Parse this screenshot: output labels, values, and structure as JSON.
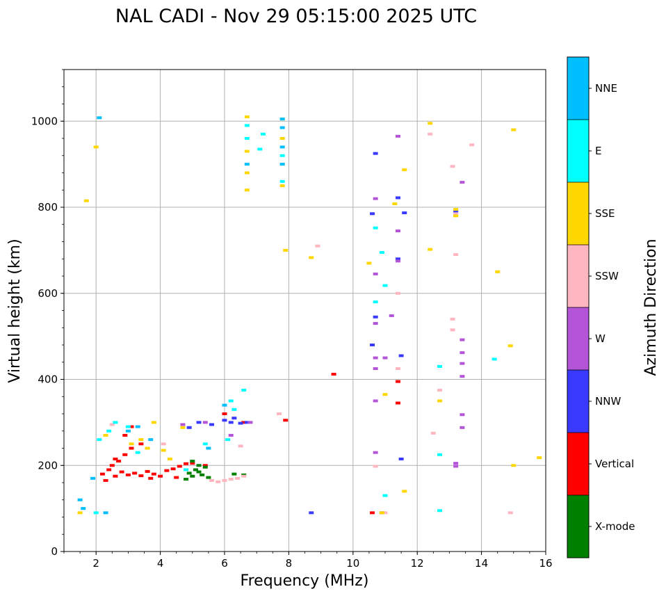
{
  "chart_data": {
    "type": "scatter",
    "title": "NAL CADI - Nov 29 05:15:00 2025 UTC",
    "xlabel": "Frequency (MHz)",
    "ylabel": "Virtual height (km)",
    "xlim": [
      1,
      16
    ],
    "ylim": [
      0,
      1120
    ],
    "xticks": [
      "2",
      "4",
      "6",
      "8",
      "10",
      "12",
      "14",
      "16"
    ],
    "yticks": [
      "0",
      "200",
      "400",
      "600",
      "800",
      "1000"
    ],
    "grid": true,
    "colorbar": {
      "label": "Azimuth Direction",
      "categories": [
        {
          "name": "X-mode",
          "color": "#008000"
        },
        {
          "name": "Vertical",
          "color": "#ff0000"
        },
        {
          "name": "NNW",
          "color": "#3a3aff"
        },
        {
          "name": "W",
          "color": "#b455d8"
        },
        {
          "name": "SSW",
          "color": "#ffb6c1"
        },
        {
          "name": "SSE",
          "color": "#ffd700"
        },
        {
          "name": "E",
          "color": "#00ffff"
        },
        {
          "name": "NNE",
          "color": "#00bfff"
        }
      ]
    },
    "series": [
      {
        "name": "Vertical",
        "points": [
          [
            2.2,
            180
          ],
          [
            2.4,
            190
          ],
          [
            2.6,
            175
          ],
          [
            2.8,
            185
          ],
          [
            3.0,
            178
          ],
          [
            3.2,
            182
          ],
          [
            3.4,
            176
          ],
          [
            3.6,
            186
          ],
          [
            3.8,
            180
          ],
          [
            4.0,
            175
          ],
          [
            4.2,
            188
          ],
          [
            4.4,
            192
          ],
          [
            4.6,
            198
          ],
          [
            4.8,
            204
          ],
          [
            2.5,
            200
          ],
          [
            2.7,
            210
          ],
          [
            2.9,
            225
          ],
          [
            3.1,
            240
          ],
          [
            2.9,
            270
          ],
          [
            3.1,
            290
          ],
          [
            2.6,
            215
          ],
          [
            3.4,
            250
          ],
          [
            5.0,
            205
          ],
          [
            5.4,
            200
          ],
          [
            6.0,
            320
          ],
          [
            6.6,
            300
          ],
          [
            7.9,
            305
          ],
          [
            11.4,
            395
          ],
          [
            11.4,
            345
          ],
          [
            9.4,
            412
          ],
          [
            10.6,
            90
          ],
          [
            4.5,
            172
          ],
          [
            2.3,
            165
          ],
          [
            3.7,
            170
          ]
        ]
      },
      {
        "name": "X-mode",
        "points": [
          [
            4.9,
            182
          ],
          [
            5.0,
            175
          ],
          [
            5.1,
            190
          ],
          [
            5.2,
            185
          ],
          [
            5.3,
            178
          ],
          [
            5.4,
            196
          ],
          [
            5.5,
            172
          ],
          [
            5.2,
            200
          ],
          [
            5.0,
            210
          ],
          [
            4.8,
            168
          ],
          [
            6.3,
            180
          ],
          [
            6.6,
            178
          ]
        ]
      },
      {
        "name": "NNW",
        "points": [
          [
            5.2,
            300
          ],
          [
            5.6,
            295
          ],
          [
            6.0,
            305
          ],
          [
            6.2,
            300
          ],
          [
            6.5,
            298
          ],
          [
            6.7,
            300
          ],
          [
            4.9,
            288
          ],
          [
            8.7,
            90
          ],
          [
            10.6,
            480
          ],
          [
            10.6,
            785
          ],
          [
            10.7,
            925
          ],
          [
            10.7,
            545
          ],
          [
            11.5,
            455
          ],
          [
            11.5,
            215
          ],
          [
            11.4,
            680
          ],
          [
            11.4,
            822
          ],
          [
            11.6,
            787
          ],
          [
            13.2,
            790
          ],
          [
            6.3,
            310
          ],
          [
            10.9,
            90
          ]
        ]
      },
      {
        "name": "W",
        "points": [
          [
            5.4,
            300
          ],
          [
            6.8,
            300
          ],
          [
            10.7,
            820
          ],
          [
            10.7,
            645
          ],
          [
            10.7,
            450
          ],
          [
            10.7,
            425
          ],
          [
            11.0,
            450
          ],
          [
            11.2,
            548
          ],
          [
            11.4,
            965
          ],
          [
            11.4,
            745
          ],
          [
            11.4,
            675
          ],
          [
            13.2,
            205
          ],
          [
            13.2,
            198
          ],
          [
            13.4,
            858
          ],
          [
            13.4,
            492
          ],
          [
            13.4,
            462
          ],
          [
            13.4,
            437
          ],
          [
            13.4,
            407
          ],
          [
            13.4,
            318
          ],
          [
            13.4,
            288
          ],
          [
            10.7,
            230
          ],
          [
            10.7,
            350
          ],
          [
            10.7,
            530
          ],
          [
            4.7,
            295
          ],
          [
            6.2,
            270
          ]
        ]
      },
      {
        "name": "SSW",
        "points": [
          [
            5.6,
            165
          ],
          [
            5.8,
            162
          ],
          [
            6.0,
            165
          ],
          [
            6.2,
            168
          ],
          [
            6.4,
            170
          ],
          [
            6.6,
            175
          ],
          [
            6.5,
            245
          ],
          [
            7.7,
            320
          ],
          [
            8.9,
            710
          ],
          [
            11.4,
            425
          ],
          [
            11.4,
            600
          ],
          [
            11.0,
            90
          ],
          [
            12.5,
            275
          ],
          [
            12.4,
            970
          ],
          [
            12.7,
            375
          ],
          [
            13.1,
            895
          ],
          [
            13.1,
            540
          ],
          [
            13.1,
            515
          ],
          [
            13.2,
            690
          ],
          [
            13.7,
            945
          ],
          [
            14.9,
            90
          ],
          [
            10.7,
            198
          ],
          [
            13.2,
            785
          ],
          [
            4.1,
            250
          ],
          [
            2.5,
            295
          ]
        ]
      },
      {
        "name": "SSE",
        "points": [
          [
            3.1,
            250
          ],
          [
            3.4,
            260
          ],
          [
            3.6,
            240
          ],
          [
            3.8,
            300
          ],
          [
            4.1,
            235
          ],
          [
            4.3,
            215
          ],
          [
            4.7,
            288
          ],
          [
            2.3,
            270
          ],
          [
            6.7,
            840
          ],
          [
            6.7,
            880
          ],
          [
            6.7,
            930
          ],
          [
            6.7,
            1010
          ],
          [
            7.8,
            850
          ],
          [
            7.8,
            900
          ],
          [
            7.8,
            960
          ],
          [
            7.8,
            1005
          ],
          [
            7.9,
            700
          ],
          [
            8.7,
            683
          ],
          [
            10.5,
            670
          ],
          [
            11.0,
            365
          ],
          [
            11.6,
            887
          ],
          [
            11.3,
            808
          ],
          [
            12.4,
            995
          ],
          [
            12.4,
            702
          ],
          [
            12.7,
            350
          ],
          [
            13.2,
            795
          ],
          [
            13.2,
            780
          ],
          [
            14.5,
            650
          ],
          [
            14.9,
            478
          ],
          [
            15.0,
            980
          ],
          [
            15.0,
            200
          ],
          [
            15.8,
            218
          ],
          [
            1.5,
            90
          ],
          [
            2.0,
            940
          ],
          [
            10.9,
            90
          ],
          [
            11.6,
            140
          ],
          [
            1.7,
            815
          ]
        ]
      },
      {
        "name": "E",
        "points": [
          [
            2.1,
            260
          ],
          [
            2.4,
            280
          ],
          [
            2.6,
            300
          ],
          [
            3.0,
            290
          ],
          [
            3.3,
            230
          ],
          [
            4.8,
            190
          ],
          [
            5.4,
            250
          ],
          [
            6.2,
            350
          ],
          [
            6.3,
            330
          ],
          [
            6.1,
            260
          ],
          [
            6.7,
            960
          ],
          [
            6.7,
            990
          ],
          [
            7.8,
            920
          ],
          [
            7.8,
            860
          ],
          [
            7.1,
            935
          ],
          [
            7.2,
            970
          ],
          [
            10.7,
            580
          ],
          [
            10.7,
            752
          ],
          [
            10.9,
            695
          ],
          [
            11.0,
            618
          ],
          [
            11.0,
            130
          ],
          [
            12.7,
            430
          ],
          [
            12.7,
            225
          ],
          [
            12.7,
            95
          ],
          [
            14.4,
            447
          ],
          [
            2.0,
            90
          ],
          [
            6.6,
            375
          ]
        ]
      },
      {
        "name": "NNE",
        "points": [
          [
            1.5,
            120
          ],
          [
            1.6,
            100
          ],
          [
            2.3,
            90
          ],
          [
            2.1,
            1008
          ],
          [
            3.0,
            280
          ],
          [
            3.3,
            290
          ],
          [
            3.7,
            260
          ],
          [
            5.5,
            240
          ],
          [
            6.0,
            340
          ],
          [
            7.8,
            900
          ],
          [
            7.8,
            940
          ],
          [
            7.8,
            985
          ],
          [
            7.8,
            1005
          ],
          [
            6.7,
            900
          ],
          [
            1.9,
            170
          ]
        ]
      }
    ]
  }
}
